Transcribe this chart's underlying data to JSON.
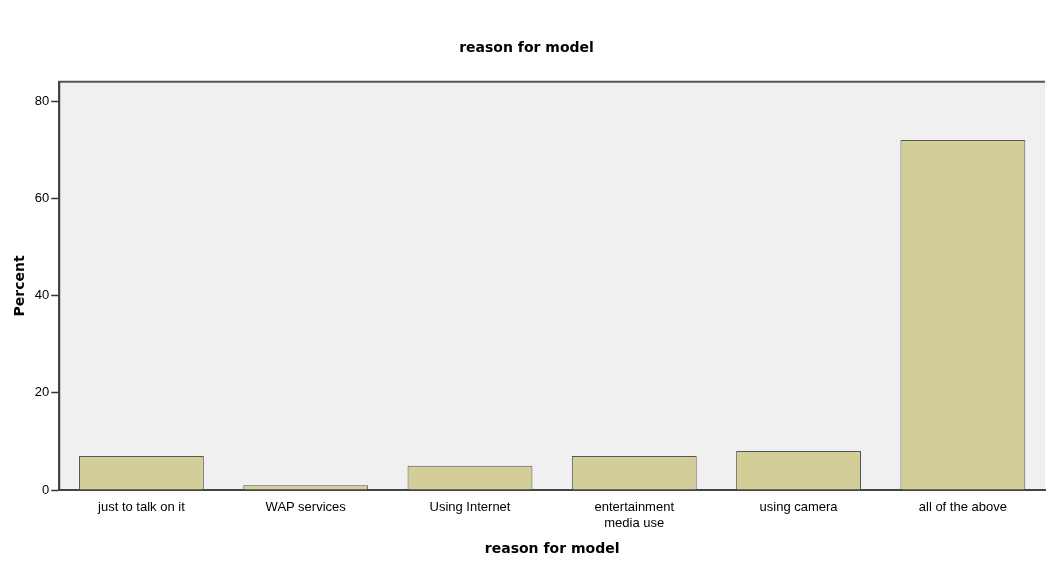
{
  "chart_data": {
    "type": "bar",
    "title": "reason for model",
    "xlabel": "reason for model",
    "ylabel": "Percent",
    "categories": [
      "just to talk on it",
      "WAP services",
      "Using Internet",
      "entertainment media use",
      "using camera",
      "all of the above"
    ],
    "values": [
      7,
      1,
      5,
      7,
      8,
      72
    ],
    "color": "#d3ce98",
    "ylim": [
      0,
      84
    ],
    "yticks": [
      0,
      20,
      40,
      60,
      80
    ],
    "grid": false,
    "legend": false
  }
}
